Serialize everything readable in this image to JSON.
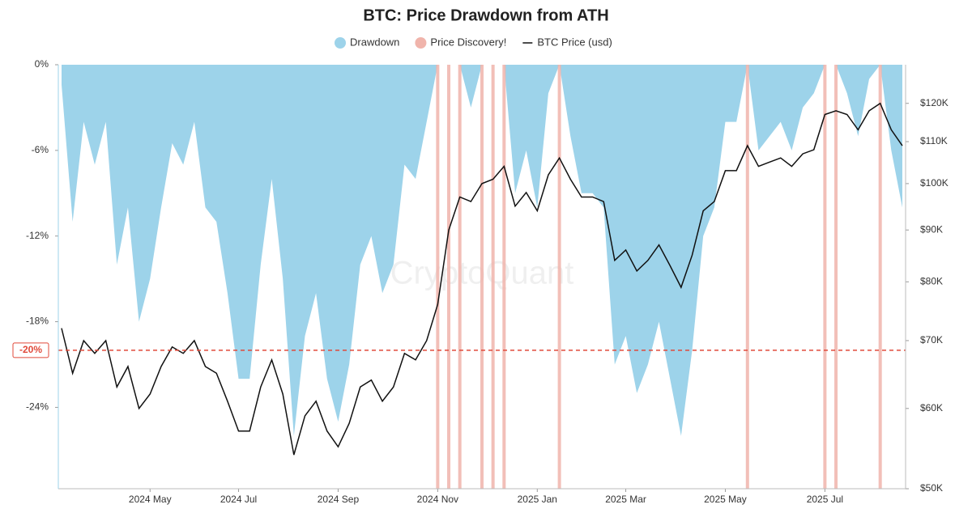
{
  "chart_data": {
    "type": "line",
    "title": "BTC: Price Drawdown from ATH",
    "watermark": "CryptoQuant",
    "categories": [
      null,
      null,
      null,
      null,
      null,
      null,
      null,
      null,
      "2024 May",
      null,
      null,
      null,
      null,
      null,
      null,
      null,
      "2024 Jul",
      null,
      null,
      null,
      null,
      null,
      null,
      null,
      null,
      "2024 Sep",
      null,
      null,
      null,
      null,
      null,
      null,
      null,
      null,
      "2024 Nov",
      null,
      null,
      null,
      null,
      null,
      null,
      null,
      null,
      "2025 Jan",
      null,
      null,
      null,
      null,
      null,
      null,
      null,
      "2025 Mar",
      null,
      null,
      null,
      null,
      null,
      null,
      null,
      null,
      "2025 May",
      null,
      null,
      null,
      null,
      null,
      null,
      null,
      null,
      "2025 Jul",
      null,
      null,
      null,
      null,
      null,
      null,
      null
    ],
    "series": [
      {
        "name": "Drawdown",
        "type": "area",
        "color": "#9dd3ea",
        "values": [
          -1.4,
          -11,
          -4,
          -7,
          -4,
          -14,
          -10,
          -18,
          -15,
          -10,
          -5.5,
          -7,
          -4,
          -10,
          -11,
          -16,
          -22,
          -22,
          -14,
          -8,
          -15,
          -26,
          -19,
          -16,
          -22,
          -25,
          -21,
          -14,
          -12,
          -16,
          -14,
          -7,
          -8,
          -4,
          0,
          0,
          0,
          -3,
          0,
          0,
          0,
          -9,
          -6,
          -10,
          -2,
          0,
          -5,
          -9,
          -9,
          -10,
          -21,
          -19,
          -23,
          -21,
          -18,
          -22,
          -26,
          -20,
          -12,
          -10,
          -4,
          -4,
          0,
          -6,
          -5,
          -4,
          -6,
          -3,
          -2,
          0,
          0,
          -2,
          -5,
          -1,
          0,
          -6,
          -10
        ]
      },
      {
        "name": "Price Discovery!",
        "type": "band",
        "color": "#f0b4ab",
        "values": [
          null,
          null,
          null,
          null,
          null,
          null,
          null,
          null,
          null,
          null,
          null,
          null,
          null,
          null,
          null,
          null,
          null,
          null,
          null,
          null,
          null,
          null,
          null,
          null,
          null,
          null,
          null,
          null,
          null,
          null,
          null,
          null,
          null,
          null,
          0,
          0,
          0,
          null,
          0,
          0,
          0,
          null,
          null,
          null,
          null,
          0,
          null,
          null,
          null,
          null,
          null,
          null,
          null,
          null,
          null,
          null,
          null,
          null,
          null,
          null,
          null,
          null,
          0,
          null,
          null,
          null,
          null,
          null,
          null,
          0,
          0,
          null,
          null,
          null,
          0,
          null,
          null
        ]
      },
      {
        "name": "BTC Price (usd)",
        "type": "line",
        "color": "#111111",
        "axis": "y2",
        "values": [
          72000,
          65000,
          70000,
          68000,
          70000,
          63000,
          66000,
          60000,
          62000,
          66000,
          69000,
          68000,
          70000,
          66000,
          65000,
          61000,
          57000,
          57000,
          63000,
          67000,
          62000,
          54000,
          59000,
          61000,
          57000,
          55000,
          58000,
          63000,
          64000,
          61000,
          63000,
          68000,
          67000,
          70000,
          76000,
          90000,
          97000,
          96000,
          100000,
          101000,
          104000,
          95000,
          98000,
          94000,
          102000,
          106000,
          101000,
          97000,
          97000,
          96000,
          84000,
          86000,
          82000,
          84000,
          87000,
          83000,
          79000,
          85000,
          94000,
          96000,
          103000,
          103000,
          109000,
          104000,
          105000,
          106000,
          104000,
          107000,
          108000,
          117000,
          118000,
          117000,
          113000,
          118000,
          120000,
          113000,
          109000
        ]
      }
    ],
    "ylim": [
      -29.7,
      0
    ],
    "yticks": [
      {
        "value": 0,
        "label": "0%"
      },
      {
        "value": -6,
        "label": "-6%"
      },
      {
        "value": -12,
        "label": "-12%"
      },
      {
        "value": -18,
        "label": "-18%"
      },
      {
        "value": -24,
        "label": "-24%"
      }
    ],
    "y2lim": [
      50000,
      131000
    ],
    "y2log": true,
    "y2ticks": [
      {
        "value": 50000,
        "label": "$50K"
      },
      {
        "value": 60000,
        "label": "$60K"
      },
      {
        "value": 70000,
        "label": "$70K"
      },
      {
        "value": 80000,
        "label": "$80K"
      },
      {
        "value": 90000,
        "label": "$90K"
      },
      {
        "value": 100000,
        "label": "$100K"
      },
      {
        "value": 110000,
        "label": "$110K"
      },
      {
        "value": 120000,
        "label": "$120K"
      }
    ],
    "annotations": [
      {
        "value": -20,
        "label": "-20%",
        "color": "#e0493a"
      }
    ],
    "legend": "top"
  }
}
